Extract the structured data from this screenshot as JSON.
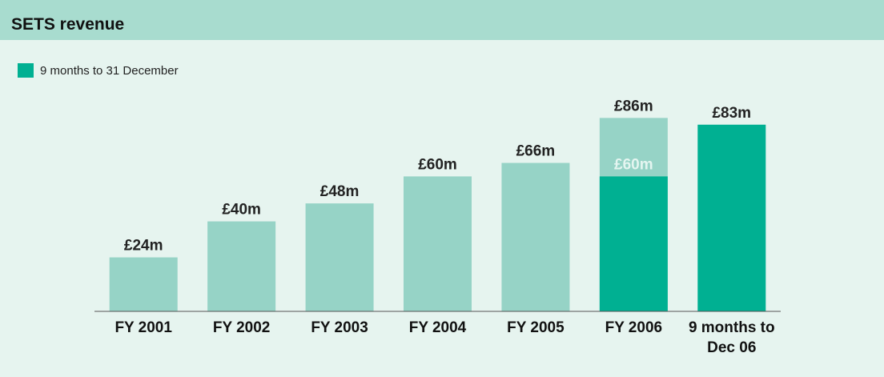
{
  "chart_data": {
    "type": "bar",
    "title": "SETS revenue",
    "categories": [
      "FY 2001",
      "FY 2002",
      "FY 2003",
      "FY 2004",
      "FY 2005",
      "FY 2006",
      "9 months to Dec 06"
    ],
    "series": [
      {
        "color": "#96d3c6",
        "values": [
          24,
          40,
          48,
          60,
          66,
          86,
          null
        ],
        "value_labels": [
          "£24m",
          "£40m",
          "£48m",
          "£60m",
          "£66m",
          "£86m",
          null
        ]
      },
      {
        "name": "9 months to 31 December",
        "color": "#00b092",
        "values": [
          null,
          null,
          null,
          null,
          null,
          60,
          83
        ],
        "value_labels": [
          null,
          null,
          null,
          null,
          null,
          "£60m",
          "£83m"
        ]
      }
    ]
  }
}
